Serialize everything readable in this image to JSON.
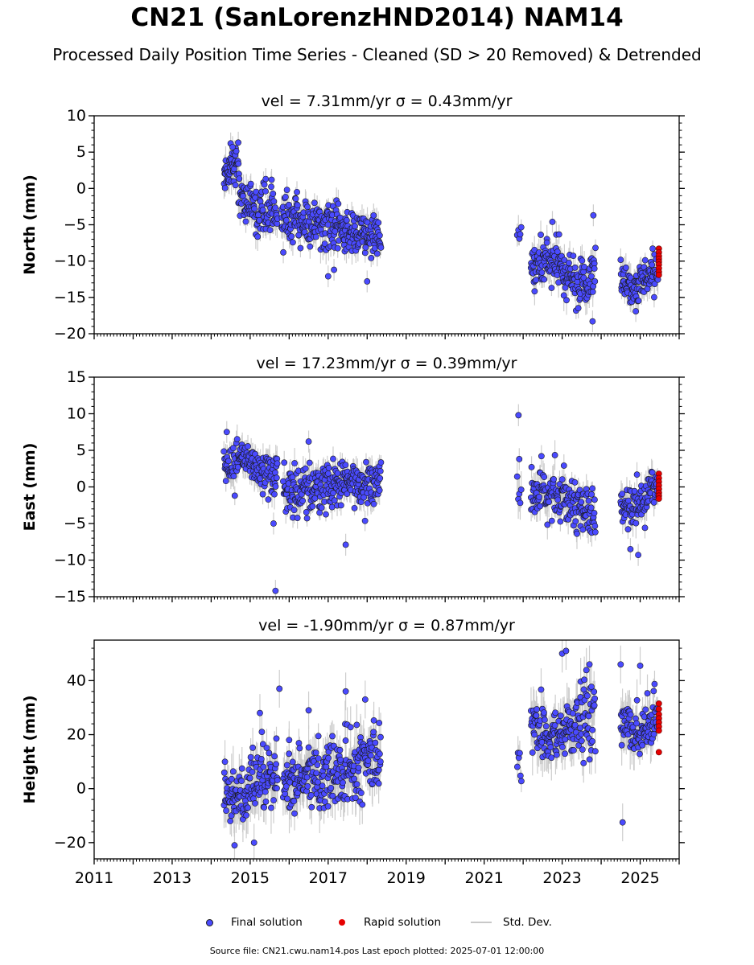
{
  "title": "CN21 (SanLorenzHND2014) NAM14",
  "subtitle": "Processed Daily Position Time Series - Cleaned (SD > 20 Removed) & Detrended",
  "legend": {
    "final": "Final solution",
    "rapid": "Rapid solution",
    "std": "Std. Dev."
  },
  "footer": "Source file: CN21.cwu.nam14.pos  Last epoch plotted: 2025-07-01 12:00:00",
  "colors": {
    "final": "#4a4aff",
    "final_edge": "#1a1a1a",
    "rapid": "#e60000",
    "errorbar": "#c8c8c8",
    "axis": "#000000"
  },
  "chart_data": [
    {
      "type": "scatter",
      "panel_title": "vel = 7.31mm/yr   σ = 0.43mm/yr",
      "ylabel": "North (mm)",
      "xlabel": "",
      "ylim": [
        -20,
        10
      ],
      "yticks": [
        -20,
        -15,
        -10,
        -5,
        0,
        5,
        10
      ],
      "ytick_labels": [
        "−20",
        "−15",
        "−10",
        "−5",
        "0",
        "5",
        "10"
      ],
      "xlim": [
        2011,
        2026
      ],
      "show_xtick_labels": false,
      "segments": [
        {
          "t0": 2014.33,
          "t1": 2014.7,
          "levels": [
            [
              0,
              2
            ],
            [
              1,
              4
            ],
            [
              2,
              1
            ]
          ],
          "sd": 1.3,
          "err": 1.5,
          "n": 50
        },
        {
          "t0": 2014.7,
          "t1": 2015.1,
          "levels": [
            [
              0,
              0
            ],
            [
              0.5,
              -2
            ],
            [
              1,
              -3
            ]
          ],
          "sd": 1.5,
          "err": 1.5,
          "n": 45
        },
        {
          "t0": 2015.1,
          "t1": 2015.7,
          "levels": [
            [
              0,
              -3
            ],
            [
              1,
              -3
            ]
          ],
          "sd": 1.5,
          "err": 1.5,
          "n": 60
        },
        {
          "t0": 2015.8,
          "t1": 2018.35,
          "levels": [
            [
              0,
              -4
            ],
            [
              0.5,
              -5.5
            ],
            [
              1,
              -7
            ]
          ],
          "sd": 1.5,
          "err": 1.5,
          "n": 280
        },
        {
          "t0": 2021.85,
          "t1": 2021.95,
          "levels": [
            [
              0,
              -6
            ],
            [
              1,
              -6
            ]
          ],
          "sd": 0.5,
          "err": 1.5,
          "n": 5
        },
        {
          "t0": 2022.2,
          "t1": 2023.0,
          "levels": [
            [
              0,
              -11
            ],
            [
              0.5,
              -10
            ],
            [
              1,
              -11
            ]
          ],
          "sd": 1.6,
          "err": 1.5,
          "n": 90
        },
        {
          "t0": 2023.0,
          "t1": 2023.85,
          "levels": [
            [
              0,
              -12
            ],
            [
              0.6,
              -13.5
            ],
            [
              1,
              -11
            ]
          ],
          "sd": 1.8,
          "err": 1.6,
          "n": 90
        },
        {
          "t0": 2024.5,
          "t1": 2025.45,
          "levels": [
            [
              0,
              -12
            ],
            [
              0.4,
              -14
            ],
            [
              1,
              -10.5
            ]
          ],
          "sd": 1.4,
          "err": 1.5,
          "n": 100
        }
      ],
      "outliers": [
        [
          2014.5,
          6.2
        ],
        [
          2014.55,
          5.7
        ],
        [
          2015.4,
          1.3
        ],
        [
          2015.55,
          1.2
        ],
        [
          2016.2,
          -0.5
        ],
        [
          2017.0,
          -12.1
        ],
        [
          2017.15,
          -11.2
        ],
        [
          2018.0,
          -12.8
        ],
        [
          2015.85,
          -8.8
        ],
        [
          2023.8,
          -3.7
        ],
        [
          2022.75,
          -4.6
        ],
        [
          2023.78,
          -18.3
        ]
      ],
      "rapid": {
        "t": 2025.48,
        "values": [
          -8.3,
          -8.8,
          -9.3,
          -9.7,
          -10.1,
          -10.5,
          -11.0,
          -11.5,
          -11.9
        ]
      }
    },
    {
      "type": "scatter",
      "panel_title": "vel = 17.23mm/yr   σ = 0.39mm/yr",
      "ylabel": "East (mm)",
      "xlabel": "",
      "ylim": [
        -15,
        15
      ],
      "yticks": [
        -15,
        -10,
        -5,
        0,
        5,
        10,
        15
      ],
      "ytick_labels": [
        "−15",
        "−10",
        "−5",
        "0",
        "5",
        "10",
        "15"
      ],
      "xlim": [
        2011,
        2026
      ],
      "show_xtick_labels": false,
      "segments": [
        {
          "t0": 2014.33,
          "t1": 2015.7,
          "levels": [
            [
              0,
              3
            ],
            [
              0.5,
              3.5
            ],
            [
              1,
              1.5
            ]
          ],
          "sd": 1.6,
          "err": 1.5,
          "n": 140
        },
        {
          "t0": 2015.85,
          "t1": 2018.35,
          "levels": [
            [
              0,
              -0.5
            ],
            [
              0.5,
              0
            ],
            [
              1,
              1
            ]
          ],
          "sd": 1.6,
          "err": 1.5,
          "n": 270
        },
        {
          "t0": 2021.85,
          "t1": 2021.95,
          "levels": [
            [
              0,
              0
            ],
            [
              1,
              -2
            ]
          ],
          "sd": 1.5,
          "err": 2.0,
          "n": 5
        },
        {
          "t0": 2022.2,
          "t1": 2023.85,
          "levels": [
            [
              0,
              -1
            ],
            [
              0.5,
              -1
            ],
            [
              1,
              -4
            ]
          ],
          "sd": 1.6,
          "err": 1.5,
          "n": 170
        },
        {
          "t0": 2024.5,
          "t1": 2025.45,
          "levels": [
            [
              0,
              -3
            ],
            [
              0.4,
              -3
            ],
            [
              1,
              0.5
            ]
          ],
          "sd": 1.3,
          "err": 1.5,
          "n": 100
        }
      ],
      "outliers": [
        [
          2015.6,
          -5.0
        ],
        [
          2015.65,
          -14.2
        ],
        [
          2017.45,
          -7.9
        ],
        [
          2021.88,
          9.8
        ],
        [
          2021.9,
          3.8
        ],
        [
          2014.4,
          7.5
        ],
        [
          2016.5,
          6.2
        ],
        [
          2024.95,
          -9.3
        ],
        [
          2024.75,
          -8.5
        ]
      ],
      "rapid": {
        "t": 2025.48,
        "values": [
          1.8,
          1.2,
          0.7,
          0.2,
          -0.3,
          -0.8,
          -1.2,
          -1.6
        ]
      }
    },
    {
      "type": "scatter",
      "panel_title": "vel = -1.90mm/yr   σ = 0.87mm/yr",
      "ylabel": "Height (mm)",
      "xlabel": "",
      "ylim": [
        -26,
        55
      ],
      "yticks": [
        -20,
        0,
        20,
        40
      ],
      "ytick_labels": [
        "−20",
        "0",
        "20",
        "40"
      ],
      "xlim": [
        2011,
        2026
      ],
      "show_xtick_labels": true,
      "xticks": [
        2011,
        2013,
        2015,
        2017,
        2019,
        2021,
        2023,
        2025
      ],
      "xtick_labels": [
        "2011",
        "2013",
        "2015",
        "2017",
        "2019",
        "2021",
        "2023",
        "2025"
      ],
      "segments": [
        {
          "t0": 2014.33,
          "t1": 2015.7,
          "levels": [
            [
              0,
              0
            ],
            [
              0.4,
              -3
            ],
            [
              1,
              5
            ]
          ],
          "sd": 6,
          "err": 7,
          "n": 140
        },
        {
          "t0": 2015.85,
          "t1": 2018.35,
          "levels": [
            [
              0,
              3
            ],
            [
              0.5,
              5
            ],
            [
              1,
              12
            ]
          ],
          "sd": 6,
          "err": 7,
          "n": 260
        },
        {
          "t0": 2021.85,
          "t1": 2021.95,
          "levels": [
            [
              0,
              10
            ],
            [
              1,
              10
            ]
          ],
          "sd": 4,
          "err": 5,
          "n": 6
        },
        {
          "t0": 2022.2,
          "t1": 2023.85,
          "levels": [
            [
              0,
              25
            ],
            [
              0.3,
              18
            ],
            [
              1,
              28
            ]
          ],
          "sd": 6,
          "err": 7,
          "n": 170
        },
        {
          "t0": 2024.5,
          "t1": 2025.45,
          "levels": [
            [
              0,
              25
            ],
            [
              0.5,
              20
            ],
            [
              1,
              25
            ]
          ],
          "sd": 5,
          "err": 6,
          "n": 100
        }
      ],
      "outliers": [
        [
          2015.25,
          28
        ],
        [
          2015.3,
          21
        ],
        [
          2015.75,
          37
        ],
        [
          2016.5,
          29
        ],
        [
          2017.45,
          36
        ],
        [
          2017.95,
          33
        ],
        [
          2023.0,
          50
        ],
        [
          2023.1,
          51
        ],
        [
          2023.7,
          46
        ],
        [
          2024.5,
          46
        ],
        [
          2024.55,
          -12.5
        ],
        [
          2025.0,
          45.5
        ],
        [
          2014.6,
          -21
        ],
        [
          2015.1,
          -20
        ],
        [
          2016.0,
          18
        ]
      ],
      "rapid": {
        "t": 2025.48,
        "values": [
          31.5,
          29.5,
          27.5,
          26,
          24.5,
          23,
          21.5,
          13.5
        ]
      }
    }
  ]
}
